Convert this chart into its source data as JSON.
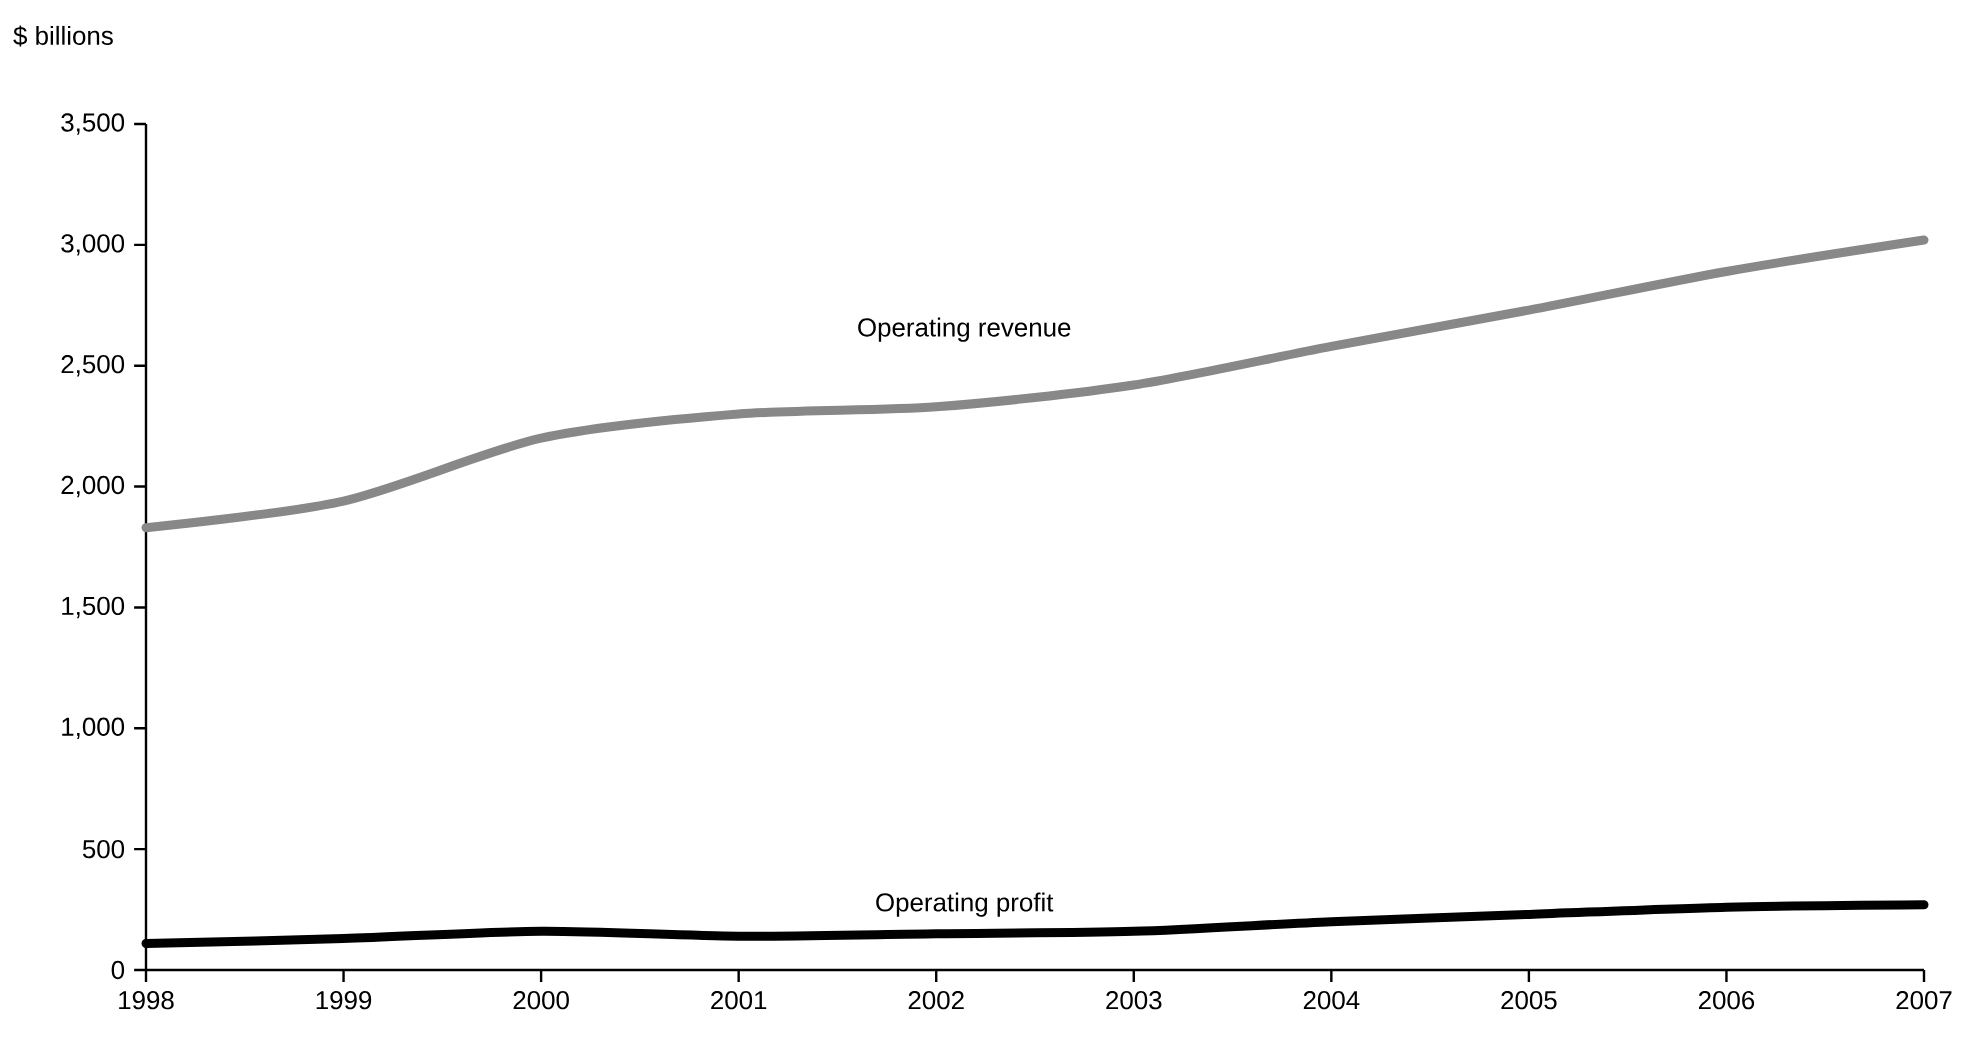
{
  "chart_data": {
    "type": "line",
    "ylabel": "$ billions",
    "x": [
      1998,
      1999,
      2000,
      2001,
      2002,
      2003,
      2004,
      2005,
      2006,
      2007
    ],
    "series": [
      {
        "name": "Operating revenue",
        "color": "#888888",
        "values": [
          1830,
          1940,
          2200,
          2300,
          2330,
          2420,
          2580,
          2730,
          2890,
          3020
        ]
      },
      {
        "name": "Operating profit",
        "color": "#000000",
        "values": [
          110,
          130,
          160,
          140,
          150,
          160,
          200,
          230,
          260,
          270
        ]
      }
    ],
    "xlim": [
      1998,
      2007
    ],
    "xticks": [
      1998,
      1999,
      2000,
      2001,
      2002,
      2003,
      2004,
      2005,
      2006,
      2007
    ],
    "ylim": [
      0,
      3500
    ],
    "yticks": [
      0,
      500,
      {
        "value": 1000,
        "label": "1,000"
      },
      {
        "value": 1500,
        "label": "1,500"
      },
      {
        "value": 2000,
        "label": "2,000"
      },
      {
        "value": 2500,
        "label": "2,500"
      },
      {
        "value": 3000,
        "label": "3,000"
      },
      {
        "value": 3500,
        "label": "3,500"
      }
    ],
    "grid": false,
    "legend": false,
    "line_style": "solid"
  }
}
